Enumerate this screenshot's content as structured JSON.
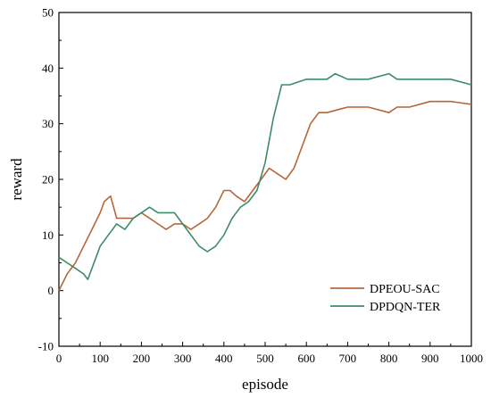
{
  "chart_data": {
    "type": "line",
    "title": "",
    "xlabel": "episode",
    "ylabel": "reward",
    "xlim": [
      0,
      1000
    ],
    "ylim": [
      -10,
      50
    ],
    "x_ticks": [
      0,
      100,
      200,
      300,
      400,
      500,
      600,
      700,
      800,
      900,
      1000
    ],
    "y_ticks": [
      -10,
      0,
      10,
      20,
      30,
      40,
      50
    ],
    "grid": false,
    "legend_position": "bottom-right",
    "series": [
      {
        "name": "DPEOU-SAC",
        "color": "#b5673a",
        "x": [
          0,
          20,
          40,
          60,
          80,
          100,
          110,
          125,
          140,
          160,
          180,
          200,
          220,
          240,
          260,
          280,
          300,
          320,
          340,
          360,
          380,
          400,
          415,
          430,
          450,
          470,
          490,
          510,
          530,
          550,
          570,
          590,
          610,
          630,
          650,
          700,
          750,
          800,
          820,
          850,
          900,
          950,
          1000
        ],
        "y": [
          0,
          3,
          5,
          8,
          11,
          14,
          16,
          17,
          13,
          13,
          13,
          14,
          13,
          12,
          11,
          12,
          12,
          11,
          12,
          13,
          15,
          18,
          18,
          17,
          16,
          18,
          20,
          22,
          21,
          20,
          22,
          26,
          30,
          32,
          32,
          33,
          33,
          32,
          33,
          33,
          34,
          34,
          33.5
        ]
      },
      {
        "name": "DPDQN-TER",
        "color": "#3e8c68",
        "x": [
          0,
          20,
          40,
          60,
          70,
          80,
          90,
          100,
          120,
          140,
          160,
          180,
          200,
          220,
          240,
          260,
          280,
          300,
          320,
          340,
          360,
          380,
          400,
          420,
          440,
          460,
          480,
          500,
          520,
          540,
          560,
          600,
          650,
          670,
          700,
          750,
          800,
          820,
          850,
          900,
          950,
          1000
        ],
        "y": [
          6,
          5,
          4,
          3,
          2,
          4,
          6,
          8,
          10,
          12,
          11,
          13,
          14,
          15,
          14,
          14,
          14,
          12,
          10,
          8,
          7,
          8,
          10,
          13,
          15,
          16,
          18,
          23,
          31,
          37,
          37,
          38,
          38,
          39,
          38,
          38,
          39,
          38,
          38,
          38,
          38,
          37
        ]
      }
    ]
  }
}
